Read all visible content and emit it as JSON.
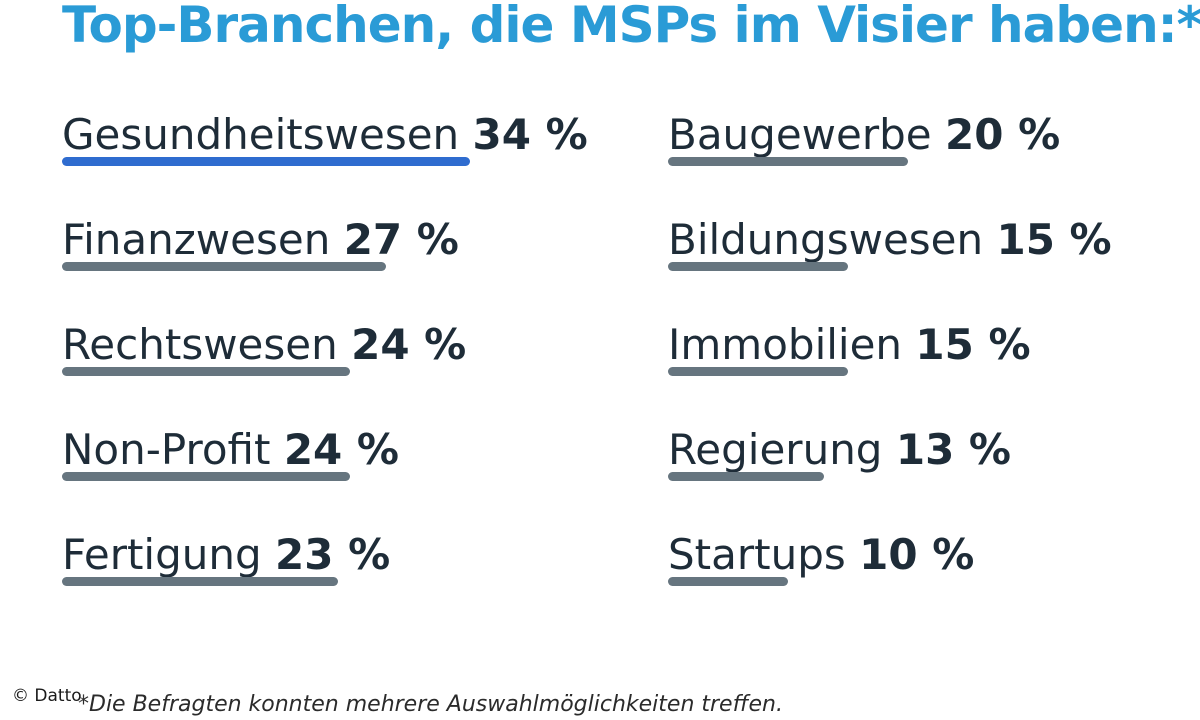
{
  "chart_data": {
    "type": "bar",
    "title": "Top-Branchen, die MSPs im Visier haben:*",
    "unit": "%",
    "xlim": [
      0,
      34
    ],
    "highlight_color": "#2f6ccf",
    "bar_color": "#66757f",
    "title_color": "#2a9bd6",
    "columns": [
      {
        "items": [
          {
            "label": "Gesundheitswesen",
            "value": 34,
            "value_text": "34 %",
            "highlight": true
          },
          {
            "label": "Finanzwesen",
            "value": 27,
            "value_text": "27 %"
          },
          {
            "label": "Rechtswesen",
            "value": 24,
            "value_text": "24 %"
          },
          {
            "label": "Non-Profit",
            "value": 24,
            "value_text": "24 %"
          },
          {
            "label": "Fertigung",
            "value": 23,
            "value_text": "23 %"
          }
        ]
      },
      {
        "items": [
          {
            "label": "Baugewerbe",
            "value": 20,
            "value_text": "20 %"
          },
          {
            "label": "Bildungswesen",
            "value": 15,
            "value_text": "15 %"
          },
          {
            "label": "Immobilien",
            "value": 15,
            "value_text": "15 %"
          },
          {
            "label": "Regierung",
            "value": 13,
            "value_text": "13 %"
          },
          {
            "label": "Startups",
            "value": 10,
            "value_text": "10 %"
          }
        ]
      }
    ]
  },
  "footnote": "*Die Befragten konnten mehrere Auswahlmöglichkeiten treffen.",
  "copyright": "© Datto"
}
